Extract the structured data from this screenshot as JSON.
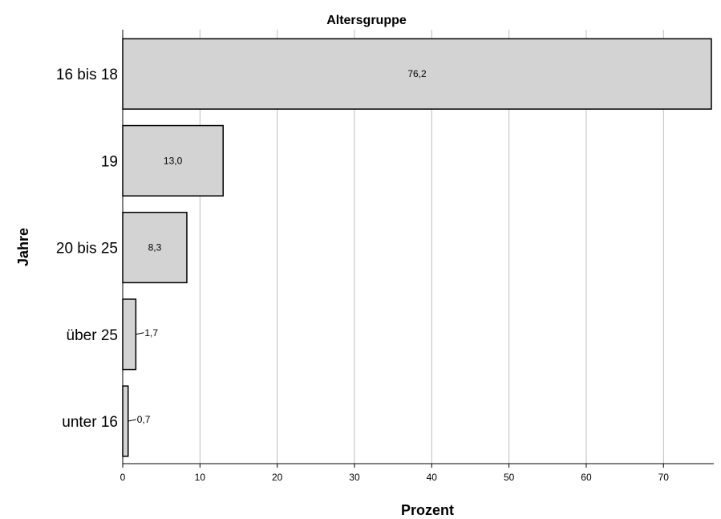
{
  "chart_data": {
    "type": "bar",
    "orientation": "horizontal",
    "title": "Altersgruppe",
    "xlabel": "Prozent",
    "ylabel": "Jahre",
    "categories": [
      "16 bis 18",
      "19",
      "20 bis 25",
      "über 25",
      "unter 16"
    ],
    "values": [
      76.2,
      13.0,
      8.3,
      1.7,
      0.7
    ],
    "value_labels": [
      "76,2",
      "13,0",
      "8,3",
      "1,7",
      "0,7"
    ],
    "xlim": [
      0,
      76.2
    ],
    "xticks": [
      0,
      10,
      20,
      30,
      40,
      50,
      60,
      70
    ],
    "grid": true,
    "legend": "none",
    "colors": {
      "bar_fill": "#d3d3d3",
      "bar_stroke": "#000000",
      "grid": "#bdbdbd"
    }
  }
}
